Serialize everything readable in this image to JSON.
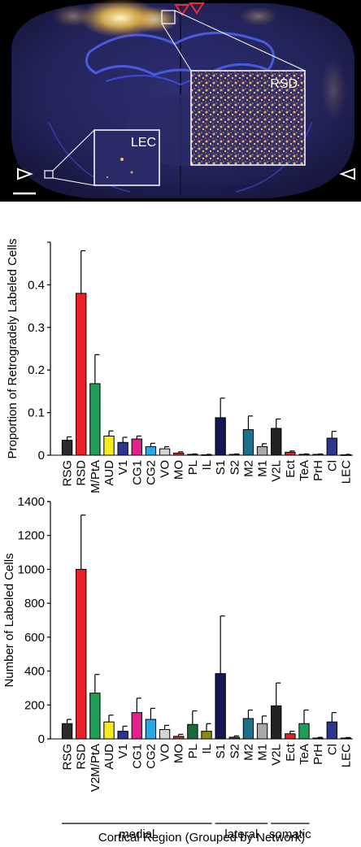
{
  "micrograph": {
    "inset_large_label": "RSD",
    "inset_small_label": "LEC"
  },
  "colors": {
    "RSG": "#2b2b2b",
    "RSD": "#e8212b",
    "V2M/PtA": "#1f9e55",
    "AUD": "#f4ec1f",
    "V1": "#2d3590",
    "CG1": "#e3208e",
    "CG2": "#2aa9e0",
    "VO": "#d4d4d4",
    "MO": "#c0392b",
    "PL": "#1a6b3a",
    "IL": "#8a8a1a",
    "S1": "#161650",
    "S2": "#444444",
    "M2": "#1f6f8b",
    "M1": "#a9a9a9",
    "V2L": "#222222",
    "Ect": "#e8212b",
    "TeA": "#1f9e55",
    "PrH": "#8fb6d8",
    "Cl": "#2d3590",
    "LEC": "#666666"
  },
  "chart_data": [
    {
      "type": "bar",
      "ylabel": "Proportion of Retrogradely Labeled Cells",
      "ylim": [
        0,
        0.5
      ],
      "yticks": [
        "0",
        "0.1",
        "0.2",
        "0.3",
        "0.4"
      ],
      "yticks_values": [
        0,
        0.1,
        0.2,
        0.3,
        0.4
      ],
      "categories": [
        "RSG",
        "RSD",
        "V2M/PtA",
        "AUD",
        "V1",
        "CG1",
        "CG2",
        "VO",
        "MO",
        "PL",
        "IL",
        "S1",
        "S2",
        "M2",
        "M1",
        "V2L",
        "Ect",
        "TeA",
        "PrH",
        "Cl",
        "LEC"
      ],
      "values": [
        0.035,
        0.38,
        0.168,
        0.045,
        0.03,
        0.038,
        0.02,
        0.015,
        0.005,
        0.002,
        0.001,
        0.088,
        0.002,
        0.06,
        0.02,
        0.063,
        0.007,
        0.002,
        0.002,
        0.04,
        0.001
      ],
      "errors": [
        0.008,
        0.1,
        0.068,
        0.012,
        0.012,
        0.007,
        0.008,
        0.005,
        0.003,
        0.001,
        0.001,
        0.046,
        0.001,
        0.032,
        0.007,
        0.022,
        0.003,
        0.001,
        0.001,
        0.016,
        0.001
      ]
    },
    {
      "type": "bar",
      "ylabel": "Number of Labeled Cells",
      "xlabel": "Cortical Region (Grouped by Network)",
      "ylim": [
        0,
        1400
      ],
      "yticks": [
        "0",
        "200",
        "400",
        "600",
        "800",
        "1000",
        "1200",
        "1400"
      ],
      "yticks_values": [
        0,
        200,
        400,
        600,
        800,
        1000,
        1200,
        1400
      ],
      "categories": [
        "RSG",
        "RSD",
        "V2M/PtA",
        "AUD",
        "V1",
        "CG1",
        "CG2",
        "VO",
        "MO",
        "PL",
        "IL",
        "S1",
        "S2",
        "M2",
        "M1",
        "V2L",
        "Ect",
        "TeA",
        "PrH",
        "Cl",
        "LEC"
      ],
      "values": [
        90,
        1000,
        270,
        100,
        45,
        155,
        115,
        55,
        15,
        85,
        45,
        385,
        10,
        120,
        90,
        195,
        30,
        90,
        5,
        100,
        5
      ],
      "errors": [
        25,
        320,
        110,
        40,
        30,
        85,
        65,
        25,
        12,
        80,
        45,
        340,
        8,
        50,
        45,
        135,
        15,
        80,
        4,
        55,
        3
      ],
      "groups": [
        {
          "label": "medial",
          "from": 0,
          "to": 10
        },
        {
          "label": "lateral",
          "from": 11,
          "to": 14
        },
        {
          "label": "somatic",
          "from": 15,
          "to": 17
        }
      ]
    }
  ]
}
